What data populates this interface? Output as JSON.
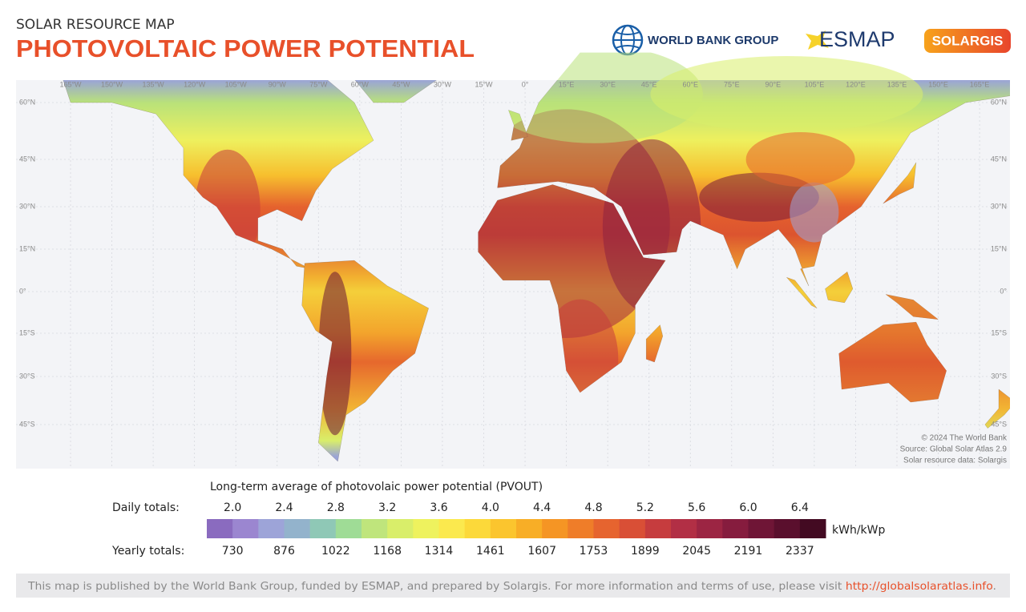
{
  "header": {
    "kicker": "SOLAR RESOURCE MAP",
    "title": "PHOTOVOLTAIC POWER POTENTIAL"
  },
  "logos": [
    "WORLD BANK GROUP",
    "ESMAP",
    "SOLARGIS"
  ],
  "map": {
    "longitude_labels": [
      "165°W",
      "150°W",
      "135°W",
      "120°W",
      "105°W",
      "90°W",
      "75°W",
      "60°W",
      "45°W",
      "30°W",
      "15°W",
      "0°",
      "15°E",
      "30°E",
      "45°E",
      "60°E",
      "75°E",
      "90°E",
      "105°E",
      "120°E",
      "135°E",
      "150°E",
      "165°E"
    ],
    "latitude_labels": [
      "60°N",
      "45°N",
      "30°N",
      "15°N",
      "0°",
      "15°S",
      "30°S",
      "45°S"
    ],
    "credits": [
      "© 2024 The World Bank",
      "Source: Global Solar Atlas 2.9",
      "Solar resource data: Solargis"
    ]
  },
  "legend": {
    "title": "Long-term average of photovolaic power potential (PVOUT)",
    "daily_label": "Daily totals:",
    "daily": [
      "2.0",
      "2.4",
      "2.8",
      "3.2",
      "3.6",
      "4.0",
      "4.4",
      "4.8",
      "5.2",
      "5.6",
      "6.0",
      "6.4"
    ],
    "yearly_label": "Yearly totals:",
    "yearly": [
      730,
      876,
      1022,
      1168,
      1314,
      1461,
      1607,
      1753,
      1899,
      2045,
      2191,
      2337
    ],
    "unit": "kWh/kWp",
    "colors": [
      "#8a6bbf",
      "#9b86d0",
      "#9da4d8",
      "#93b3cc",
      "#8fc8b6",
      "#9fdc96",
      "#bfe57c",
      "#d9ee6a",
      "#eef25e",
      "#fbe94e",
      "#fcd93a",
      "#fbc52e",
      "#f8ae26",
      "#f59524",
      "#ef7d29",
      "#e6642f",
      "#d94f36",
      "#c63c3e",
      "#b22f45",
      "#9c2543",
      "#861c3e",
      "#6f1536",
      "#5a0f2d",
      "#430a22"
    ]
  },
  "footer": {
    "text": "This map is published by the World Bank Group, funded by ESMAP, and prepared by Solargis. For more information and terms of use, please visit ",
    "link": "http://globalsolaratlas.info",
    "end": "."
  }
}
